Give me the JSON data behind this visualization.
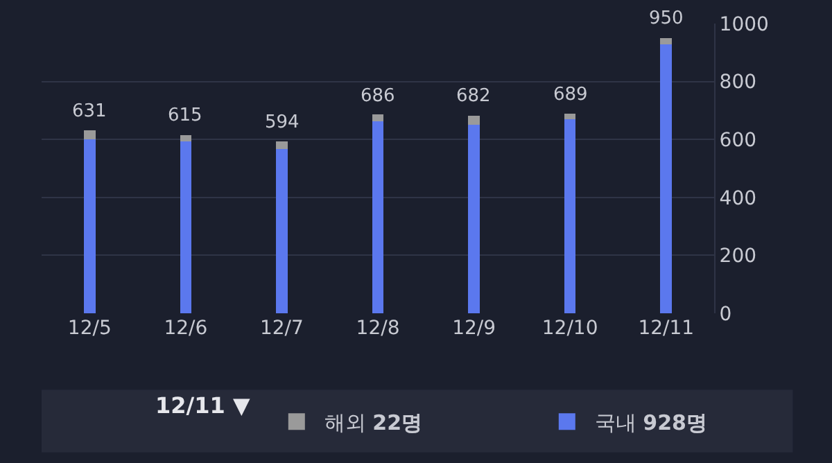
{
  "chart_data": {
    "type": "bar",
    "stacked": true,
    "categories": [
      "12/5",
      "12/6",
      "12/7",
      "12/8",
      "12/9",
      "12/10",
      "12/11"
    ],
    "series": [
      {
        "name": "국내 928명",
        "color": "#5b78ee",
        "values": [
          600,
          594,
          566,
          662,
          651,
          671,
          928
        ]
      },
      {
        "name": "해외 22명",
        "color": "#9a9a9a",
        "values": [
          31,
          21,
          28,
          24,
          31,
          18,
          22
        ]
      }
    ],
    "totals": [
      "631",
      "615",
      "594",
      "686",
      "682",
      "689",
      "950"
    ],
    "ylim": [
      0,
      1000
    ],
    "yticks": [
      0,
      200,
      400,
      600,
      800,
      1000
    ],
    "grid": "y",
    "legend": "bottom",
    "annotations": [
      "12/11 ▼"
    ]
  }
}
